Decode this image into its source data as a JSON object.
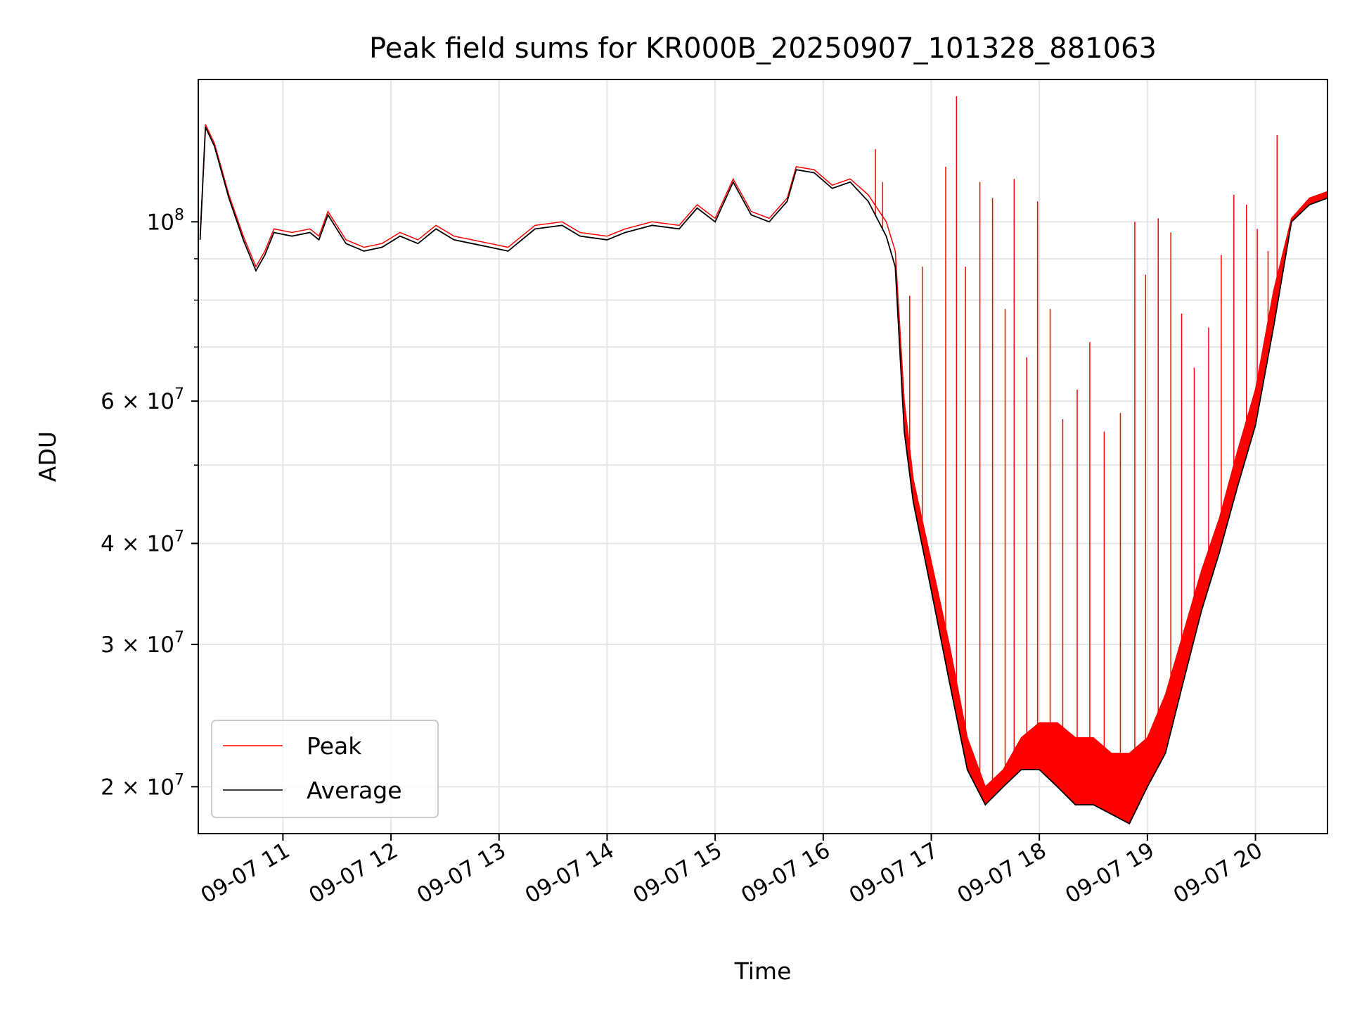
{
  "chart_data": {
    "type": "line",
    "title": "Peak field sums for KR000B_20250907_101328_881063",
    "xlabel": "Time",
    "ylabel": "ADU",
    "yscale": "log",
    "grid": true,
    "legend_position": "lower-left",
    "xlim": [
      "2025-09-07 10:13",
      "2025-09-07 20:40"
    ],
    "ylim": [
      17500000,
      150000000
    ],
    "x_ticks": [
      {
        "t": "2025-09-07 11:00",
        "label": "09-07 11"
      },
      {
        "t": "2025-09-07 12:00",
        "label": "09-07 12"
      },
      {
        "t": "2025-09-07 13:00",
        "label": "09-07 13"
      },
      {
        "t": "2025-09-07 14:00",
        "label": "09-07 14"
      },
      {
        "t": "2025-09-07 15:00",
        "label": "09-07 15"
      },
      {
        "t": "2025-09-07 16:00",
        "label": "09-07 16"
      },
      {
        "t": "2025-09-07 17:00",
        "label": "09-07 17"
      },
      {
        "t": "2025-09-07 18:00",
        "label": "09-07 18"
      },
      {
        "t": "2025-09-07 19:00",
        "label": "09-07 19"
      },
      {
        "t": "2025-09-07 20:00",
        "label": "09-07 20"
      }
    ],
    "y_ticks": [
      {
        "value": 20000000,
        "label": "2 × 10",
        "exp": "7"
      },
      {
        "value": 30000000,
        "label": "3 × 10",
        "exp": "7"
      },
      {
        "value": 40000000,
        "label": "4 × 10",
        "exp": "7"
      },
      {
        "value": 60000000,
        "label": "6 × 10",
        "exp": "7"
      },
      {
        "value": 100000000,
        "label": "10",
        "exp": "8"
      }
    ],
    "y_minor_ticks": [
      50000000,
      70000000,
      80000000,
      90000000
    ],
    "series": [
      {
        "name": "Peak",
        "color": "#ff0000",
        "x": [
          "2025-09-07 10:14",
          "2025-09-07 10:17",
          "2025-09-07 10:22",
          "2025-09-07 10:30",
          "2025-09-07 10:38",
          "2025-09-07 10:45",
          "2025-09-07 10:50",
          "2025-09-07 10:55",
          "2025-09-07 11:05",
          "2025-09-07 11:15",
          "2025-09-07 11:20",
          "2025-09-07 11:25",
          "2025-09-07 11:35",
          "2025-09-07 11:45",
          "2025-09-07 11:55",
          "2025-09-07 12:05",
          "2025-09-07 12:15",
          "2025-09-07 12:25",
          "2025-09-07 12:35",
          "2025-09-07 12:45",
          "2025-09-07 12:55",
          "2025-09-07 13:05",
          "2025-09-07 13:20",
          "2025-09-07 13:35",
          "2025-09-07 13:45",
          "2025-09-07 14:00",
          "2025-09-07 14:10",
          "2025-09-07 14:25",
          "2025-09-07 14:40",
          "2025-09-07 14:50",
          "2025-09-07 15:00",
          "2025-09-07 15:10",
          "2025-09-07 15:20",
          "2025-09-07 15:30",
          "2025-09-07 15:40",
          "2025-09-07 15:45",
          "2025-09-07 15:55",
          "2025-09-07 16:05",
          "2025-09-07 16:15",
          "2025-09-07 16:25",
          "2025-09-07 16:35",
          "2025-09-07 16:40",
          "2025-09-07 16:45",
          "2025-09-07 16:50",
          "2025-09-07 17:00",
          "2025-09-07 17:10",
          "2025-09-07 17:20",
          "2025-09-07 17:30",
          "2025-09-07 17:40",
          "2025-09-07 17:50",
          "2025-09-07 18:00",
          "2025-09-07 18:10",
          "2025-09-07 18:20",
          "2025-09-07 18:30",
          "2025-09-07 18:40",
          "2025-09-07 18:50",
          "2025-09-07 19:00",
          "2025-09-07 19:10",
          "2025-09-07 19:20",
          "2025-09-07 19:30",
          "2025-09-07 19:40",
          "2025-09-07 19:50",
          "2025-09-07 20:00",
          "2025-09-07 20:10",
          "2025-09-07 20:20",
          "2025-09-07 20:30",
          "2025-09-07 20:40"
        ],
        "y": [
          96000000,
          132000000,
          125000000,
          108000000,
          96000000,
          88000000,
          92000000,
          98000000,
          97000000,
          98000000,
          96000000,
          103000000,
          95000000,
          93000000,
          94000000,
          97000000,
          95000000,
          99000000,
          96000000,
          95000000,
          94000000,
          93000000,
          99000000,
          100000000,
          97000000,
          96000000,
          98000000,
          100000000,
          99000000,
          105000000,
          101000000,
          113000000,
          103000000,
          101000000,
          107000000,
          117000000,
          116000000,
          111000000,
          113000000,
          108000000,
          100000000,
          92000000,
          60000000,
          48000000,
          38000000,
          30000000,
          23000000,
          20000000,
          21000000,
          23000000,
          24000000,
          24000000,
          23000000,
          23000000,
          22000000,
          22000000,
          23000000,
          26000000,
          31000000,
          37000000,
          43000000,
          52000000,
          62000000,
          82000000,
          101000000,
          107000000,
          109000000
        ],
        "spikes": [
          {
            "t": "2025-09-07 16:29",
            "y": 123000000
          },
          {
            "t": "2025-09-07 16:33",
            "y": 112000000
          },
          {
            "t": "2025-09-07 16:48",
            "y": 81000000
          },
          {
            "t": "2025-09-07 16:55",
            "y": 88000000
          },
          {
            "t": "2025-09-07 17:08",
            "y": 117000000
          },
          {
            "t": "2025-09-07 17:14",
            "y": 143000000
          },
          {
            "t": "2025-09-07 17:19",
            "y": 88000000
          },
          {
            "t": "2025-09-07 17:27",
            "y": 112000000
          },
          {
            "t": "2025-09-07 17:34",
            "y": 107000000
          },
          {
            "t": "2025-09-07 17:41",
            "y": 78000000
          },
          {
            "t": "2025-09-07 17:46",
            "y": 113000000
          },
          {
            "t": "2025-09-07 17:53",
            "y": 68000000
          },
          {
            "t": "2025-09-07 17:59",
            "y": 106000000
          },
          {
            "t": "2025-09-07 18:06",
            "y": 78000000
          },
          {
            "t": "2025-09-07 18:13",
            "y": 57000000
          },
          {
            "t": "2025-09-07 18:21",
            "y": 62000000
          },
          {
            "t": "2025-09-07 18:28",
            "y": 71000000
          },
          {
            "t": "2025-09-07 18:36",
            "y": 55000000
          },
          {
            "t": "2025-09-07 18:45",
            "y": 58000000
          },
          {
            "t": "2025-09-07 18:53",
            "y": 100000000
          },
          {
            "t": "2025-09-07 18:59",
            "y": 86000000
          },
          {
            "t": "2025-09-07 19:06",
            "y": 101000000
          },
          {
            "t": "2025-09-07 19:13",
            "y": 97000000
          },
          {
            "t": "2025-09-07 19:19",
            "y": 77000000
          },
          {
            "t": "2025-09-07 19:26",
            "y": 66000000
          },
          {
            "t": "2025-09-07 19:34",
            "y": 74000000
          },
          {
            "t": "2025-09-07 19:41",
            "y": 91000000
          },
          {
            "t": "2025-09-07 19:48",
            "y": 108000000
          },
          {
            "t": "2025-09-07 19:55",
            "y": 105000000
          },
          {
            "t": "2025-09-07 20:01",
            "y": 98000000
          },
          {
            "t": "2025-09-07 20:07",
            "y": 92000000
          },
          {
            "t": "2025-09-07 20:12",
            "y": 128000000
          }
        ]
      },
      {
        "name": "Average",
        "color": "#000000",
        "x": [
          "2025-09-07 10:14",
          "2025-09-07 10:17",
          "2025-09-07 10:22",
          "2025-09-07 10:30",
          "2025-09-07 10:38",
          "2025-09-07 10:45",
          "2025-09-07 10:50",
          "2025-09-07 10:55",
          "2025-09-07 11:05",
          "2025-09-07 11:15",
          "2025-09-07 11:20",
          "2025-09-07 11:25",
          "2025-09-07 11:35",
          "2025-09-07 11:45",
          "2025-09-07 11:55",
          "2025-09-07 12:05",
          "2025-09-07 12:15",
          "2025-09-07 12:25",
          "2025-09-07 12:35",
          "2025-09-07 12:45",
          "2025-09-07 12:55",
          "2025-09-07 13:05",
          "2025-09-07 13:20",
          "2025-09-07 13:35",
          "2025-09-07 13:45",
          "2025-09-07 14:00",
          "2025-09-07 14:10",
          "2025-09-07 14:25",
          "2025-09-07 14:40",
          "2025-09-07 14:50",
          "2025-09-07 15:00",
          "2025-09-07 15:10",
          "2025-09-07 15:20",
          "2025-09-07 15:30",
          "2025-09-07 15:40",
          "2025-09-07 15:45",
          "2025-09-07 15:55",
          "2025-09-07 16:05",
          "2025-09-07 16:15",
          "2025-09-07 16:25",
          "2025-09-07 16:35",
          "2025-09-07 16:40",
          "2025-09-07 16:45",
          "2025-09-07 16:50",
          "2025-09-07 17:00",
          "2025-09-07 17:10",
          "2025-09-07 17:20",
          "2025-09-07 17:30",
          "2025-09-07 17:40",
          "2025-09-07 17:50",
          "2025-09-07 18:00",
          "2025-09-07 18:10",
          "2025-09-07 18:20",
          "2025-09-07 18:30",
          "2025-09-07 18:40",
          "2025-09-07 18:50",
          "2025-09-07 19:00",
          "2025-09-07 19:10",
          "2025-09-07 19:20",
          "2025-09-07 19:30",
          "2025-09-07 19:40",
          "2025-09-07 19:50",
          "2025-09-07 20:00",
          "2025-09-07 20:10",
          "2025-09-07 20:20",
          "2025-09-07 20:30",
          "2025-09-07 20:40"
        ],
        "y": [
          95000000,
          131000000,
          124000000,
          107000000,
          95000000,
          87000000,
          91000000,
          97000000,
          96000000,
          97000000,
          95000000,
          102000000,
          94000000,
          92000000,
          93000000,
          96000000,
          94000000,
          98000000,
          95000000,
          94000000,
          93000000,
          92000000,
          98000000,
          99000000,
          96000000,
          95000000,
          97000000,
          99000000,
          98000000,
          104000000,
          100000000,
          112000000,
          102000000,
          100000000,
          106000000,
          116000000,
          115000000,
          110000000,
          112000000,
          106000000,
          96000000,
          88000000,
          55000000,
          45000000,
          35000000,
          27000000,
          21000000,
          19000000,
          20000000,
          21000000,
          21000000,
          20000000,
          19000000,
          19000000,
          18500000,
          18000000,
          20000000,
          22000000,
          27000000,
          33000000,
          39000000,
          47000000,
          56000000,
          74000000,
          100000000,
          105000000,
          107000000
        ]
      }
    ]
  }
}
